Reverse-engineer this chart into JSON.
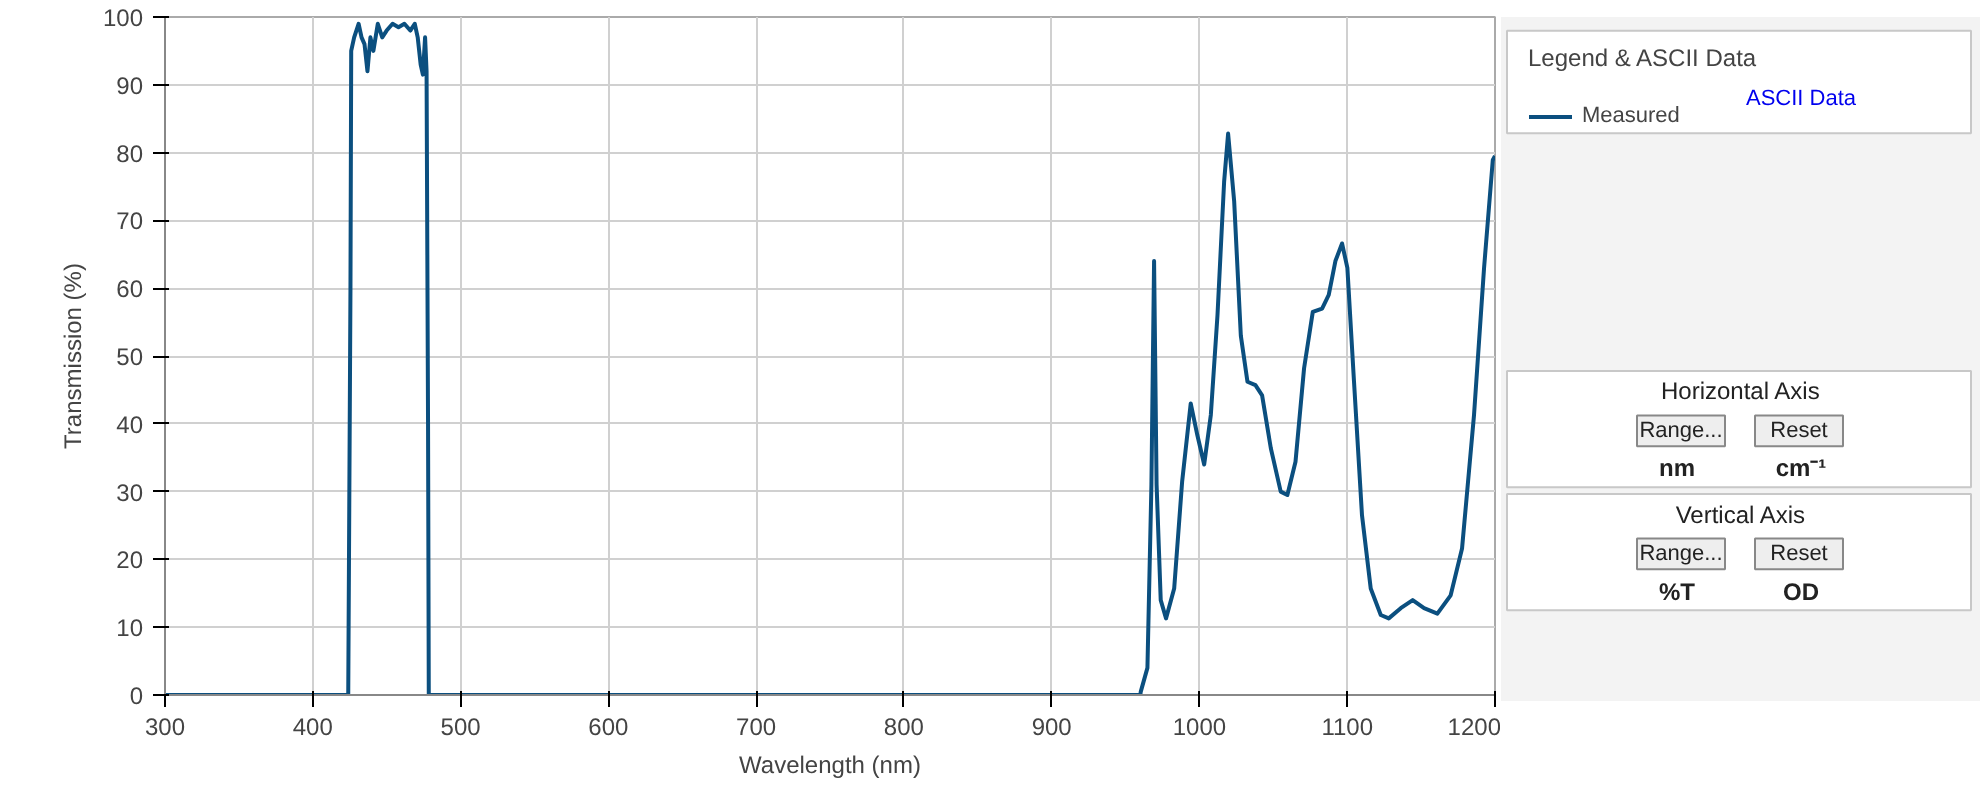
{
  "chart_data": {
    "type": "line",
    "xlabel": "Wavelength (nm)",
    "ylabel": "Transmission (%)",
    "legend_title": "Legend & ASCII Data",
    "xlim": [
      300,
      1200
    ],
    "ylim": [
      0,
      100
    ],
    "xticks": [
      300,
      400,
      500,
      600,
      700,
      800,
      900,
      1000,
      1100,
      1200
    ],
    "yticks": [
      0,
      10,
      20,
      30,
      40,
      50,
      60,
      70,
      80,
      90,
      100
    ],
    "grid": true,
    "legend": "top right",
    "line_style": "solid",
    "annotations": [
      "ASCII Data",
      "Horizontal Axis",
      "Range...",
      "Reset",
      "nm",
      "cm⁻¹",
      "Vertical Axis",
      "Range...",
      "Reset",
      "%T",
      "OD"
    ],
    "series": [
      {
        "name": "Measured",
        "color": "#0b4f7f",
        "x": [
          300,
          424,
          425.5,
          426,
          428,
          431,
          433,
          435,
          437,
          439,
          441,
          444,
          447,
          450,
          454,
          458,
          462,
          466,
          469,
          471,
          473,
          474.5,
          476,
          477,
          478,
          478.5,
          960,
          960.3,
          964.8,
          967.5,
          969.3,
          971,
          973.8,
          977.4,
          982.9,
          988.3,
          994.1,
          998.6,
          1003.2,
          1007.7,
          1012.2,
          1016.7,
          1019.4,
          1023.5,
          1028,
          1032.5,
          1037.9,
          1042.4,
          1048.3,
          1055,
          1059.5,
          1065,
          1070.8,
          1076.7,
          1083,
          1087.5,
          1092,
          1096.5,
          1100.1,
          1104.6,
          1110,
          1115.9,
          1122.7,
          1128.1,
          1136.2,
          1144.3,
          1152,
          1161,
          1170,
          1177.7,
          1185.8,
          1192.6,
          1198.5,
          1200
        ],
        "values": [
          0,
          0,
          60,
          95,
          97,
          99,
          97,
          96,
          92,
          97,
          95,
          99,
          97,
          98,
          99,
          98.5,
          99,
          98,
          99,
          97,
          93,
          91.5,
          97,
          92,
          40,
          0,
          0,
          0.5,
          4,
          31,
          64,
          31,
          14,
          11.3,
          15.7,
          31.5,
          43,
          38.3,
          34,
          41.3,
          56,
          75.7,
          82.8,
          72.8,
          53,
          46.2,
          45.7,
          44.2,
          36.4,
          30,
          29.5,
          34.4,
          48.2,
          56.5,
          57,
          59,
          64,
          66.6,
          63,
          46.2,
          26.5,
          15.7,
          11.8,
          11.3,
          12.8,
          14,
          12.8,
          12,
          14.7,
          21.6,
          41.3,
          63,
          78.9,
          79.5
        ]
      }
    ]
  }
}
